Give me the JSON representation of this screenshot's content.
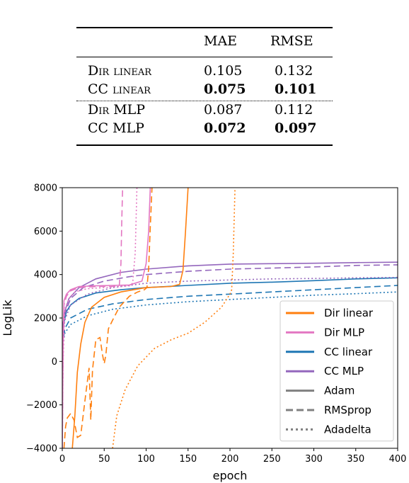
{
  "caption_fragment": "",
  "table": {
    "headers": [
      "",
      "MAE",
      "RMSE"
    ],
    "rows": [
      {
        "model": "Dir linear",
        "mae": "0.105",
        "rmse": "0.132",
        "bold": false
      },
      {
        "model": "CC linear",
        "mae": "0.075",
        "rmse": "0.101",
        "bold": true
      },
      {
        "model": "Dir MLP",
        "mae": "0.087",
        "rmse": "0.112",
        "bold": false
      },
      {
        "model": "CC MLP",
        "mae": "0.072",
        "rmse": "0.097",
        "bold": true
      }
    ]
  },
  "chart_data": {
    "type": "line",
    "xlabel": "epoch",
    "ylabel": "LogLik",
    "xlim": [
      0,
      400
    ],
    "ylim": [
      -4000,
      8000
    ],
    "xticks": [
      0,
      50,
      100,
      150,
      200,
      250,
      300,
      350,
      400
    ],
    "yticks": [
      -4000,
      -2000,
      0,
      2000,
      4000,
      6000,
      8000
    ],
    "ytick_labels": [
      "−4000",
      "−2000",
      "0",
      "2000",
      "4000",
      "6000",
      "8000"
    ],
    "grid": false,
    "legend_position": "lower-right",
    "colors": {
      "Dir linear": "#ff7f0e",
      "Dir MLP": "#e377c2",
      "CC linear": "#1f77b4",
      "CC MLP": "#9467bd",
      "neutral": "#808080"
    },
    "legend": [
      {
        "label": "Dir linear",
        "color": "#ff7f0e",
        "dash": "solid"
      },
      {
        "label": "Dir MLP",
        "color": "#e377c2",
        "dash": "solid"
      },
      {
        "label": "CC linear",
        "color": "#1f77b4",
        "dash": "solid"
      },
      {
        "label": "CC MLP",
        "color": "#9467bd",
        "dash": "solid"
      },
      {
        "label": "Adam",
        "color": "#808080",
        "dash": "solid"
      },
      {
        "label": "RMSprop",
        "color": "#808080",
        "dash": "dashed"
      },
      {
        "label": "Adadelta",
        "color": "#808080",
        "dash": "dotted"
      }
    ],
    "series": [
      {
        "name": "CC linear Adam",
        "color": "#1f77b4",
        "dash": "solid",
        "points": [
          [
            0,
            800
          ],
          [
            2,
            1800
          ],
          [
            5,
            2300
          ],
          [
            10,
            2600
          ],
          [
            20,
            2900
          ],
          [
            40,
            3150
          ],
          [
            70,
            3300
          ],
          [
            100,
            3400
          ],
          [
            150,
            3500
          ],
          [
            200,
            3600
          ],
          [
            250,
            3650
          ],
          [
            300,
            3720
          ],
          [
            350,
            3800
          ],
          [
            400,
            3850
          ]
        ]
      },
      {
        "name": "CC linear RMSprop",
        "color": "#1f77b4",
        "dash": "dashed",
        "points": [
          [
            0,
            700
          ],
          [
            3,
            1500
          ],
          [
            10,
            2000
          ],
          [
            30,
            2400
          ],
          [
            60,
            2650
          ],
          [
            100,
            2850
          ],
          [
            150,
            3000
          ],
          [
            200,
            3100
          ],
          [
            250,
            3200
          ],
          [
            300,
            3300
          ],
          [
            350,
            3400
          ],
          [
            400,
            3500
          ]
        ]
      },
      {
        "name": "CC linear Adadelta",
        "color": "#1f77b4",
        "dash": "dotted",
        "points": [
          [
            0,
            600
          ],
          [
            3,
            1300
          ],
          [
            10,
            1700
          ],
          [
            30,
            2100
          ],
          [
            60,
            2400
          ],
          [
            100,
            2600
          ],
          [
            150,
            2750
          ],
          [
            200,
            2850
          ],
          [
            250,
            2950
          ],
          [
            300,
            3050
          ],
          [
            350,
            3120
          ],
          [
            400,
            3200
          ]
        ]
      },
      {
        "name": "CC MLP Adam",
        "color": "#9467bd",
        "dash": "solid",
        "points": [
          [
            0,
            1500
          ],
          [
            3,
            2300
          ],
          [
            8,
            2900
          ],
          [
            20,
            3400
          ],
          [
            40,
            3800
          ],
          [
            70,
            4100
          ],
          [
            100,
            4250
          ],
          [
            150,
            4400
          ],
          [
            200,
            4480
          ],
          [
            250,
            4500
          ],
          [
            300,
            4520
          ],
          [
            350,
            4550
          ],
          [
            400,
            4570
          ]
        ]
      },
      {
        "name": "CC MLP RMSprop",
        "color": "#9467bd",
        "dash": "dashed",
        "points": [
          [
            0,
            1200
          ],
          [
            3,
            2200
          ],
          [
            10,
            2900
          ],
          [
            25,
            3400
          ],
          [
            50,
            3700
          ],
          [
            80,
            3900
          ],
          [
            100,
            4000
          ],
          [
            150,
            4150
          ],
          [
            200,
            4250
          ],
          [
            250,
            4300
          ],
          [
            300,
            4350
          ],
          [
            350,
            4420
          ],
          [
            400,
            4450
          ]
        ]
      },
      {
        "name": "CC MLP Adadelta",
        "color": "#9467bd",
        "dash": "dotted",
        "points": [
          [
            0,
            900
          ],
          [
            3,
            1900
          ],
          [
            10,
            2600
          ],
          [
            30,
            3100
          ],
          [
            60,
            3400
          ],
          [
            100,
            3600
          ],
          [
            150,
            3700
          ],
          [
            200,
            3750
          ],
          [
            250,
            3800
          ],
          [
            300,
            3820
          ],
          [
            350,
            3850
          ],
          [
            400,
            3870
          ]
        ]
      },
      {
        "name": "Dir MLP Adam",
        "color": "#e377c2",
        "dash": "solid",
        "points": [
          [
            0,
            -4000
          ],
          [
            1,
            1000
          ],
          [
            2,
            2800
          ],
          [
            5,
            3100
          ],
          [
            10,
            3300
          ],
          [
            20,
            3450
          ],
          [
            40,
            3480
          ],
          [
            60,
            3500
          ],
          [
            80,
            3520
          ],
          [
            95,
            3700
          ],
          [
            100,
            4500
          ],
          [
            103,
            6000
          ],
          [
            105,
            8000
          ]
        ]
      },
      {
        "name": "Dir MLP RMSprop",
        "color": "#e377c2",
        "dash": "dashed",
        "points": [
          [
            0,
            -4000
          ],
          [
            1,
            500
          ],
          [
            2,
            2600
          ],
          [
            5,
            3000
          ],
          [
            10,
            3250
          ],
          [
            20,
            3400
          ],
          [
            40,
            3450
          ],
          [
            60,
            3450
          ],
          [
            68,
            3500
          ],
          [
            70,
            4500
          ],
          [
            71,
            6500
          ],
          [
            72,
            8000
          ]
        ]
      },
      {
        "name": "Dir MLP Adadelta",
        "color": "#e377c2",
        "dash": "dotted",
        "points": [
          [
            0,
            -4000
          ],
          [
            1,
            0
          ],
          [
            3,
            2400
          ],
          [
            8,
            2900
          ],
          [
            15,
            3200
          ],
          [
            30,
            3350
          ],
          [
            50,
            3400
          ],
          [
            70,
            3450
          ],
          [
            80,
            3480
          ],
          [
            84,
            3600
          ],
          [
            87,
            5000
          ],
          [
            89,
            8000
          ]
        ]
      },
      {
        "name": "Dir linear Adam",
        "color": "#ff7f0e",
        "dash": "solid",
        "points": [
          [
            12,
            -4000
          ],
          [
            15,
            -2500
          ],
          [
            18,
            -500
          ],
          [
            22,
            800
          ],
          [
            27,
            1800
          ],
          [
            35,
            2500
          ],
          [
            50,
            2950
          ],
          [
            70,
            3200
          ],
          [
            100,
            3400
          ],
          [
            130,
            3450
          ],
          [
            140,
            3550
          ],
          [
            144,
            4200
          ],
          [
            147,
            6000
          ],
          [
            150,
            8000
          ]
        ]
      },
      {
        "name": "Dir linear RMSprop",
        "color": "#ff7f0e",
        "dash": "dashed",
        "points": [
          [
            2,
            -4000
          ],
          [
            4,
            -3000
          ],
          [
            6,
            -2600
          ],
          [
            10,
            -2400
          ],
          [
            14,
            -2700
          ],
          [
            18,
            -3500
          ],
          [
            22,
            -3400
          ],
          [
            28,
            -1500
          ],
          [
            32,
            -300
          ],
          [
            34,
            -2700
          ],
          [
            36,
            -400
          ],
          [
            40,
            1000
          ],
          [
            45,
            1100
          ],
          [
            48,
            300
          ],
          [
            50,
            -100
          ],
          [
            52,
            300
          ],
          [
            55,
            1500
          ],
          [
            60,
            1900
          ],
          [
            68,
            2500
          ],
          [
            80,
            3000
          ],
          [
            90,
            3200
          ],
          [
            98,
            3300
          ],
          [
            101,
            3400
          ],
          [
            103,
            4300
          ],
          [
            105,
            6200
          ],
          [
            107,
            8000
          ]
        ]
      },
      {
        "name": "Dir linear Adadelta",
        "color": "#ff7f0e",
        "dash": "dotted",
        "points": [
          [
            60,
            -4000
          ],
          [
            65,
            -2500
          ],
          [
            75,
            -1300
          ],
          [
            90,
            -200
          ],
          [
            110,
            600
          ],
          [
            130,
            1000
          ],
          [
            150,
            1300
          ],
          [
            170,
            1800
          ],
          [
            190,
            2500
          ],
          [
            200,
            3100
          ],
          [
            202,
            3300
          ],
          [
            204,
            5000
          ],
          [
            205,
            6500
          ],
          [
            206,
            8000
          ]
        ]
      }
    ]
  }
}
